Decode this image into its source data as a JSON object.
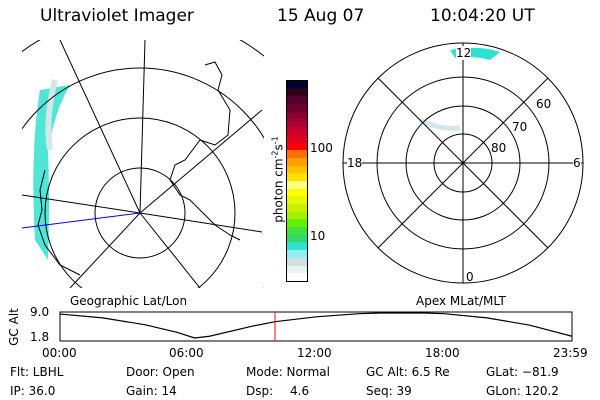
{
  "header": {
    "instrument": "Ultraviolet Imager",
    "date": "15 Aug 07",
    "time": "10:04:20 UT"
  },
  "left_panel": {
    "label": "Geographic Lat/Lon"
  },
  "right_panel": {
    "label": "Apex MLat/MLT",
    "mlt_labels": [
      "12",
      "18",
      "6",
      "0"
    ],
    "mlat_labels": [
      "60",
      "70",
      "80"
    ]
  },
  "colorbar": {
    "unit_label": "photon cm",
    "unit_exp1": "-2",
    "unit_s": "s",
    "unit_exp2": "-1",
    "tick_labels": [
      "100",
      "10"
    ],
    "colors": [
      "#000033",
      "#33001a",
      "#55002a",
      "#6e0030",
      "#8a0030",
      "#a80030",
      "#c80030",
      "#e00020",
      "#ff0000",
      "#ff7000",
      "#ffa000",
      "#ffc000",
      "#ffe000",
      "#ffff80",
      "#ffff00",
      "#e8f800",
      "#c8f000",
      "#a0f000",
      "#60f000",
      "#40e040",
      "#30d870",
      "#30e0d0",
      "#90f0f0",
      "#d0e0e0",
      "#e8f4f0",
      "#ffffff"
    ]
  },
  "aurora_color": "#30e0d0",
  "chart_data": {
    "type": "line",
    "title": "",
    "xlabel": "",
    "ylabel": "GC Alt",
    "x_tick_labels": [
      "00:00",
      "06:00",
      "12:00",
      "18:00",
      "23:59"
    ],
    "y_tick_labels": [
      "9.0",
      "1.8"
    ],
    "xlim": [
      0,
      23.98
    ],
    "ylim": [
      1.8,
      9.0
    ],
    "x": [
      0,
      2,
      4,
      5.5,
      6.3,
      7,
      9,
      10.07,
      12,
      14,
      15,
      17,
      18,
      20,
      22,
      23.98
    ],
    "values": [
      8.7,
      7.6,
      5.6,
      3.4,
      1.8,
      2.3,
      5.2,
      6.5,
      7.9,
      8.8,
      9.0,
      9.0,
      8.8,
      7.6,
      5.5,
      2.3
    ],
    "marker_time": 10.07,
    "marker_color": "#ff0000"
  },
  "info": {
    "filter": "Flt: LBHL",
    "ip": "IP: 36.0",
    "door": "Door: Open",
    "gain": "Gain: 14",
    "mode": "Mode: Normal",
    "dsp_label": "Dsp:",
    "dsp_value": "4.6",
    "gc_alt": "GC Alt: 6.5 Re",
    "seq": "Seq: 39",
    "glat": "GLat: −81.9",
    "glon": "GLon: 120.2"
  }
}
